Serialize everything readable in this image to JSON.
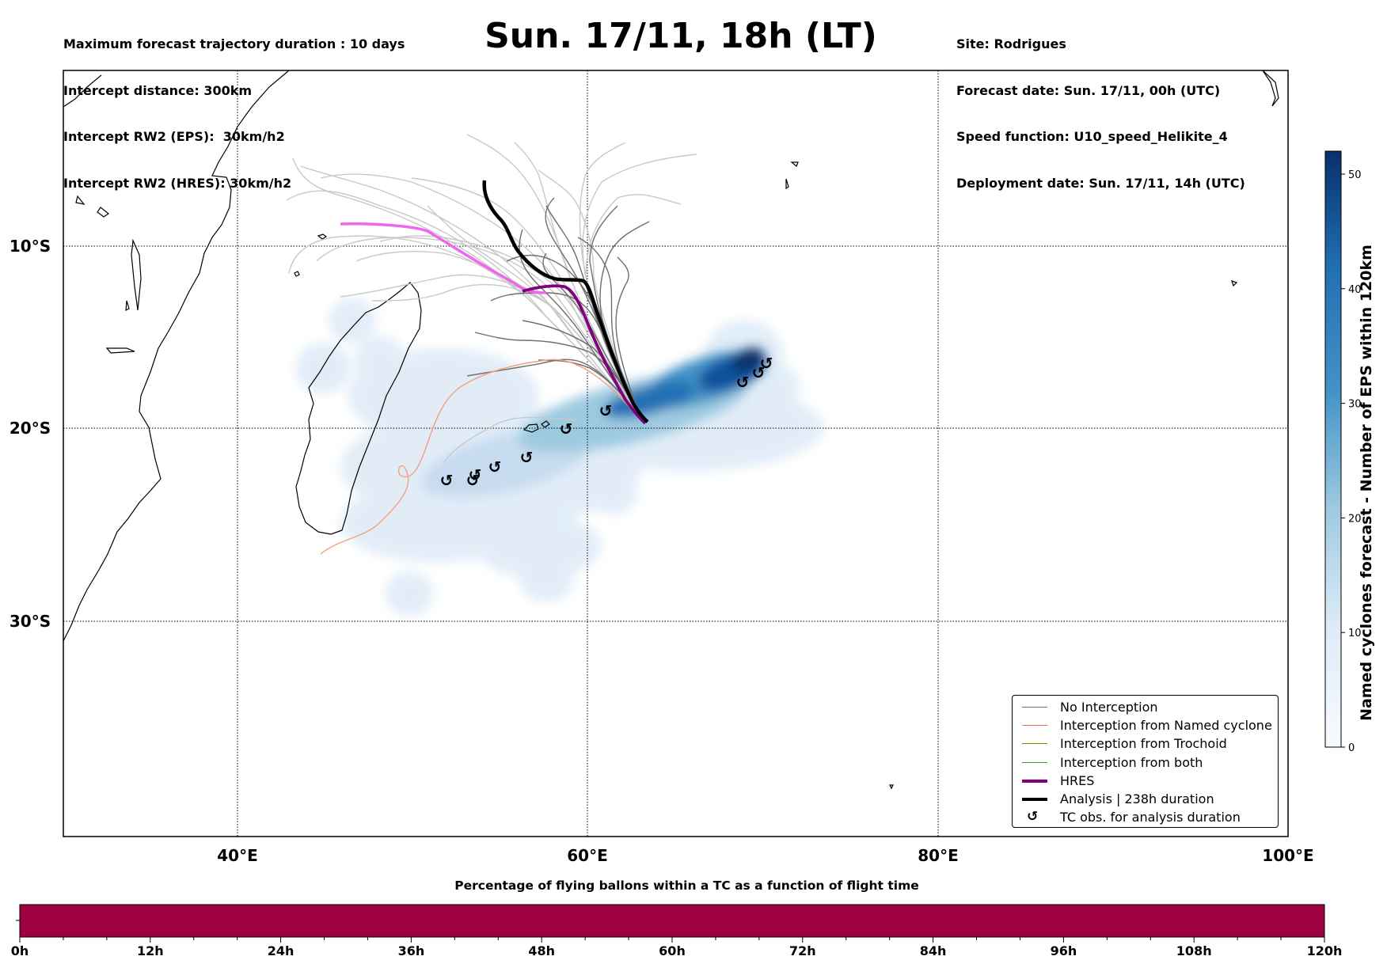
{
  "header": {
    "left_lines": [
      "Maximum forecast trajectory duration : 10 days",
      "Intercept distance: 300km",
      "Intercept RW2 (EPS):  30km/h2",
      "Intercept RW2 (HRES): 30km/h2"
    ],
    "title": "Sun. 17/11, 18h (LT)",
    "right_lines": [
      "Site: Rodrigues",
      "Forecast date: Sun. 17/11, 00h (UTC)",
      "Speed function: U10_speed_Helikite_4",
      "Deployment date: Sun. 17/11, 14h (UTC)"
    ]
  },
  "map": {
    "lon_range": [
      30,
      100
    ],
    "lat_range": [
      -43.5,
      0.2
    ],
    "lat_labels": [
      "10°S",
      "20°S",
      "30°S"
    ],
    "lon_labels": [
      "40°E",
      "60°E",
      "80°E",
      "100°E"
    ],
    "colors": {
      "no_interception": "#6e6e6e",
      "named_cyclone": "#f07850",
      "trochoid": "#808000",
      "both": "#2ca02c",
      "hres": "#800080",
      "analysis": "#000000"
    }
  },
  "legend": {
    "items": [
      {
        "label": "No Interception",
        "color": "#6e6e6e",
        "style": "line-thin"
      },
      {
        "label": "Interception from Named cyclone",
        "color": "#f07850",
        "style": "line-thin"
      },
      {
        "label": "Interception from Trochoid",
        "color": "#808000",
        "style": "line-thin"
      },
      {
        "label": "Interception from both",
        "color": "#2ca02c",
        "style": "line-thin"
      },
      {
        "label": "HRES",
        "color": "#800080",
        "style": "line-thick"
      },
      {
        "label": "Analysis | 238h duration",
        "color": "#000000",
        "style": "line-thick"
      },
      {
        "label": "TC obs. for analysis duration",
        "color": "#000000",
        "style": "symbol",
        "symbol": "↺"
      }
    ]
  },
  "colorbar": {
    "label": "Named cyclones forecast - Number of EPS within 120km",
    "range": [
      0,
      52
    ],
    "ticks": [
      "0",
      "10",
      "20",
      "30",
      "40",
      "50"
    ],
    "colors": [
      "#f7fbff",
      "#08306b"
    ]
  },
  "timebar": {
    "title": "Percentage of flying ballons within a TC as a function of flight time",
    "fill_color": "#9e0142",
    "ticks": [
      "0h",
      "12h",
      "24h",
      "36h",
      "48h",
      "60h",
      "72h",
      "84h",
      "96h",
      "108h",
      "120h"
    ]
  }
}
